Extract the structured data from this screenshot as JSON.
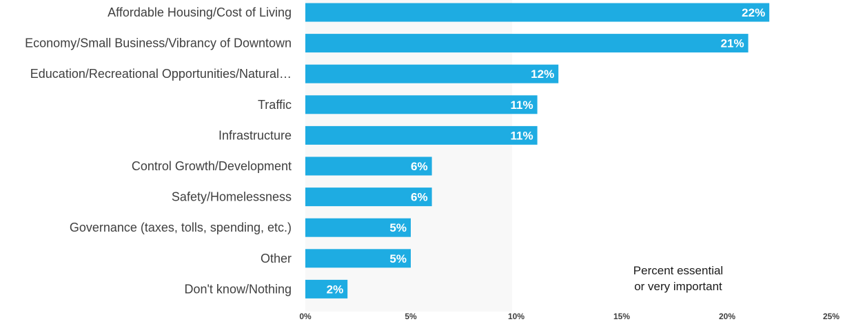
{
  "chart_data": {
    "type": "bar",
    "orientation": "horizontal",
    "categories": [
      "Affordable Housing/Cost of Living",
      "Economy/Small Business/Vibrancy of Downtown",
      "Education/Recreational Opportunities/Natural…",
      "Traffic",
      "Infrastructure",
      "Control Growth/Development",
      "Safety/Homelessness",
      "Governance (taxes, tolls, spending, etc.)",
      "Other",
      "Don't know/Nothing"
    ],
    "values": [
      22,
      21,
      12,
      11,
      11,
      6,
      6,
      5,
      5,
      2
    ],
    "value_labels": [
      "22%",
      "21%",
      "12%",
      "11%",
      "11%",
      "6%",
      "6%",
      "5%",
      "5%",
      "2%"
    ],
    "xlim": [
      0,
      25
    ],
    "xticks": [
      0,
      5,
      10,
      15,
      20,
      25
    ],
    "xtick_labels": [
      "0%",
      "5%",
      "10%",
      "15%",
      "20%",
      "25%"
    ],
    "grid": false,
    "bar_color": "#1eace2",
    "note_lines": [
      "Percent essential",
      "or very important"
    ]
  }
}
